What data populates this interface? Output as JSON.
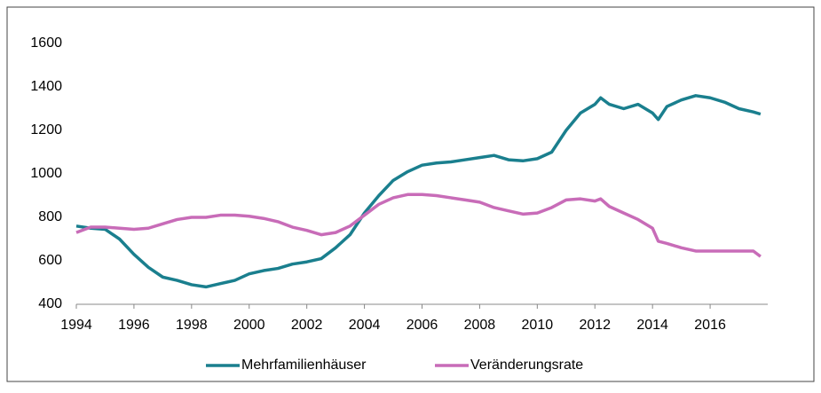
{
  "chart_data": {
    "type": "line",
    "x": [
      1994,
      1994.5,
      1995,
      1995.5,
      1996,
      1996.5,
      1997,
      1997.5,
      1998,
      1998.5,
      1999,
      1999.5,
      2000,
      2000.5,
      2001,
      2001.5,
      2002,
      2002.5,
      2003,
      2003.5,
      2004,
      2004.5,
      2005,
      2005.5,
      2006,
      2006.5,
      2007,
      2007.5,
      2008,
      2008.5,
      2009,
      2009.5,
      2010,
      2010.5,
      2011,
      2011.5,
      2012,
      2012.2,
      2012.5,
      2013,
      2013.5,
      2014,
      2014.2,
      2014.5,
      2015,
      2015.5,
      2016,
      2016.5,
      2017,
      2017.5,
      2017.75
    ],
    "series": [
      {
        "name": "Mehrfamilienhäuser",
        "color": "#1a7f8e",
        "values": [
          760,
          750,
          745,
          700,
          630,
          570,
          525,
          510,
          490,
          480,
          495,
          510,
          540,
          555,
          565,
          585,
          595,
          610,
          660,
          720,
          820,
          900,
          970,
          1010,
          1040,
          1050,
          1055,
          1065,
          1075,
          1085,
          1065,
          1060,
          1070,
          1100,
          1200,
          1280,
          1320,
          1350,
          1320,
          1300,
          1320,
          1280,
          1250,
          1310,
          1340,
          1360,
          1350,
          1330,
          1300,
          1285,
          1275
        ]
      },
      {
        "name": "Veränderungsrate",
        "color": "#c86cb8",
        "values": [
          730,
          755,
          755,
          750,
          745,
          750,
          770,
          790,
          800,
          800,
          810,
          810,
          805,
          795,
          780,
          755,
          740,
          720,
          730,
          760,
          810,
          860,
          890,
          905,
          905,
          900,
          890,
          880,
          870,
          845,
          830,
          815,
          820,
          845,
          880,
          885,
          875,
          885,
          850,
          820,
          790,
          750,
          690,
          680,
          660,
          645,
          645,
          645,
          645,
          645,
          620
        ]
      }
    ],
    "xlim": [
      1994,
      2018
    ],
    "xticks": [
      1994,
      1996,
      1998,
      2000,
      2002,
      2004,
      2006,
      2008,
      2010,
      2012,
      2014,
      2016
    ],
    "ylim": [
      400,
      1600
    ],
    "yticks": [
      400,
      600,
      800,
      1000,
      1200,
      1400,
      1600
    ],
    "legend": "bottom"
  }
}
